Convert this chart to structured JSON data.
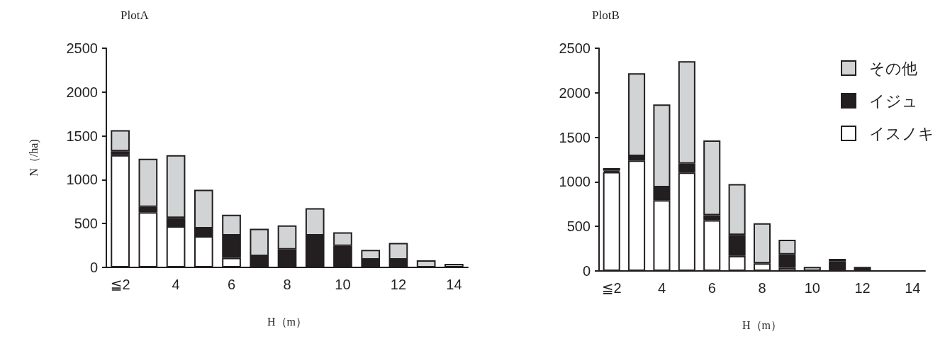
{
  "chart_data": [
    {
      "type": "bar",
      "title": "PlotA",
      "xlabel": "H（m）",
      "ylabel": "N（/ha)",
      "stacked": true,
      "legend": false,
      "grid": false,
      "categories": [
        "≦2",
        null,
        "4",
        null,
        "6",
        null,
        "8",
        null,
        "10",
        null,
        "12",
        null,
        "14"
      ],
      "series": [
        {
          "color": "#ffffff",
          "values": [
            1280,
            630,
            470,
            355,
            110,
            0,
            0,
            0,
            0,
            0,
            0,
            0,
            0
          ]
        },
        {
          "color": "#231f20",
          "values": [
            45,
            60,
            95,
            90,
            255,
            130,
            205,
            365,
            245,
            90,
            90,
            0,
            0
          ]
        },
        {
          "color": "#d1d3d4",
          "values": [
            240,
            550,
            715,
            440,
            235,
            310,
            275,
            310,
            155,
            110,
            190,
            80,
            40
          ]
        }
      ],
      "ylim": [
        0,
        2500
      ],
      "yticks": [
        0,
        500,
        1000,
        1500,
        2000,
        2500
      ]
    },
    {
      "type": "bar",
      "title": "PlotB",
      "xlabel": "H（m）",
      "stacked": true,
      "legend": "top right",
      "grid": false,
      "categories": [
        "≦2",
        null,
        "4",
        null,
        "6",
        null,
        "8",
        null,
        "10",
        null,
        "12",
        null,
        "14"
      ],
      "series": [
        {
          "name": "イスノキ",
          "color": "#ffffff",
          "values": [
            1110,
            1240,
            795,
            1105,
            570,
            170,
            85,
            35,
            0,
            0,
            0,
            0,
            0
          ]
        },
        {
          "name": "イジュ",
          "color": "#231f20",
          "values": [
            15,
            50,
            145,
            100,
            55,
            235,
            0,
            150,
            0,
            105,
            45,
            0,
            0
          ]
        },
        {
          "name": "その他",
          "color": "#d1d3d4",
          "values": [
            30,
            930,
            930,
            1150,
            840,
            570,
            450,
            165,
            45,
            30,
            0,
            0,
            0
          ]
        }
      ],
      "ylim": [
        0,
        2500
      ],
      "yticks": [
        0,
        500,
        1000,
        1500,
        2000,
        2500
      ]
    }
  ]
}
